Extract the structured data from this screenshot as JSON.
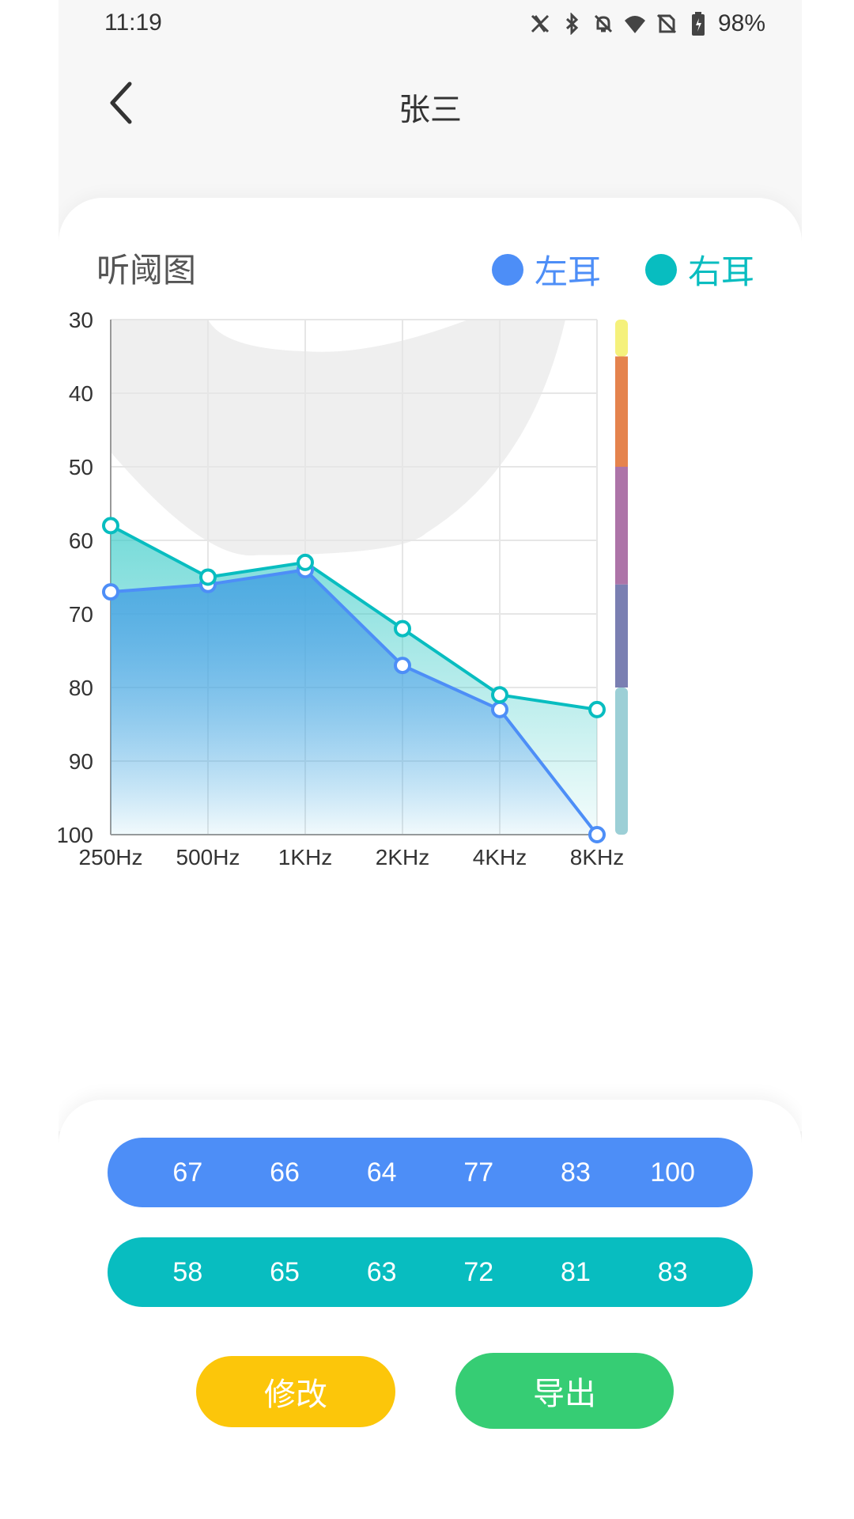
{
  "status_bar": {
    "time": "11:19",
    "battery": "98%"
  },
  "header": {
    "title": "张三"
  },
  "chart_card": {
    "title": "听阈图",
    "legend": [
      {
        "label": "左耳",
        "color": "#4d8ef7"
      },
      {
        "label": "右耳",
        "color": "#08bdc0"
      }
    ]
  },
  "chart_data": {
    "type": "line",
    "categories": [
      "250Hz",
      "500Hz",
      "1KHz",
      "2KHz",
      "4KHz",
      "8KHz"
    ],
    "y_ticks": [
      "30",
      "40",
      "50",
      "60",
      "70",
      "80",
      "90",
      "100"
    ],
    "ylim": [
      30,
      100
    ],
    "y_inverted": true,
    "grid": true,
    "series": [
      {
        "name": "左耳",
        "values": [
          67,
          66,
          64,
          77,
          83,
          100
        ],
        "color": "#4d8ef7"
      },
      {
        "name": "右耳",
        "values": [
          58,
          65,
          63,
          72,
          81,
          83
        ],
        "color": "#08bdc0"
      }
    ],
    "severity_scale_colors": [
      "#f5f17c",
      "#e5834d",
      "#ad74a8",
      "#7a7fb2",
      "#9ccfd6"
    ]
  },
  "values": {
    "left": [
      "67",
      "66",
      "64",
      "77",
      "83",
      "100"
    ],
    "right": [
      "58",
      "65",
      "63",
      "72",
      "81",
      "83"
    ]
  },
  "buttons": {
    "edit": "修改",
    "export": "导出"
  },
  "colors": {
    "left_row": "#4d8ef7",
    "right_row": "#08bdc0",
    "edit": "#fcc60a",
    "export": "#36cd74"
  }
}
